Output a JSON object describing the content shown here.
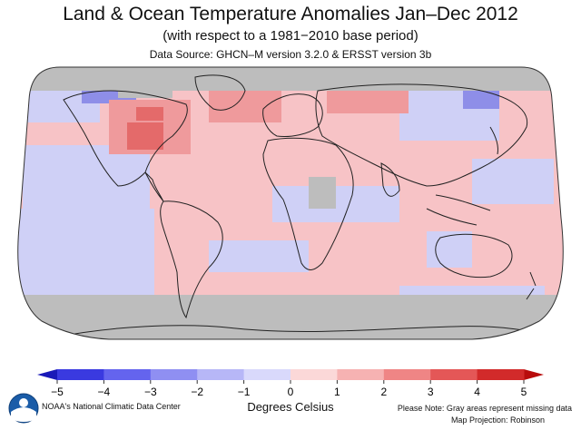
{
  "title": "Land & Ocean Temperature Anomalies Jan–Dec 2012",
  "subtitle": "(with respect to a 1981−2010 base period)",
  "data_source": "Data Source: GHCN–M version 3.2.0 & ERSST version 3b",
  "legend": {
    "ticks": [
      "−5",
      "−4",
      "−3",
      "−2",
      "−1",
      "0",
      "1",
      "2",
      "3",
      "4",
      "5"
    ],
    "units_label": "Degrees Celsius",
    "colors": [
      "#1a1ab8",
      "#3a3ae0",
      "#6464ee",
      "#8f8ff2",
      "#b7b7f7",
      "#d9d9fb",
      "#fbd8d8",
      "#f6b2b2",
      "#ef8585",
      "#e45757",
      "#d22a2a",
      "#b80c0c"
    ]
  },
  "credit": "NOAA's National Climatic Data Center",
  "note": "Please Note: Gray areas represent missing data",
  "projection": "Map Projection: Robinson",
  "map_colors": {
    "ocean_warm": "#f7c3c6",
    "ocean_cool": "#cfd0f6",
    "missing": "#bdbdbd",
    "strong_warm": "#e46a6a",
    "strong_cool": "#8e8ee8"
  }
}
